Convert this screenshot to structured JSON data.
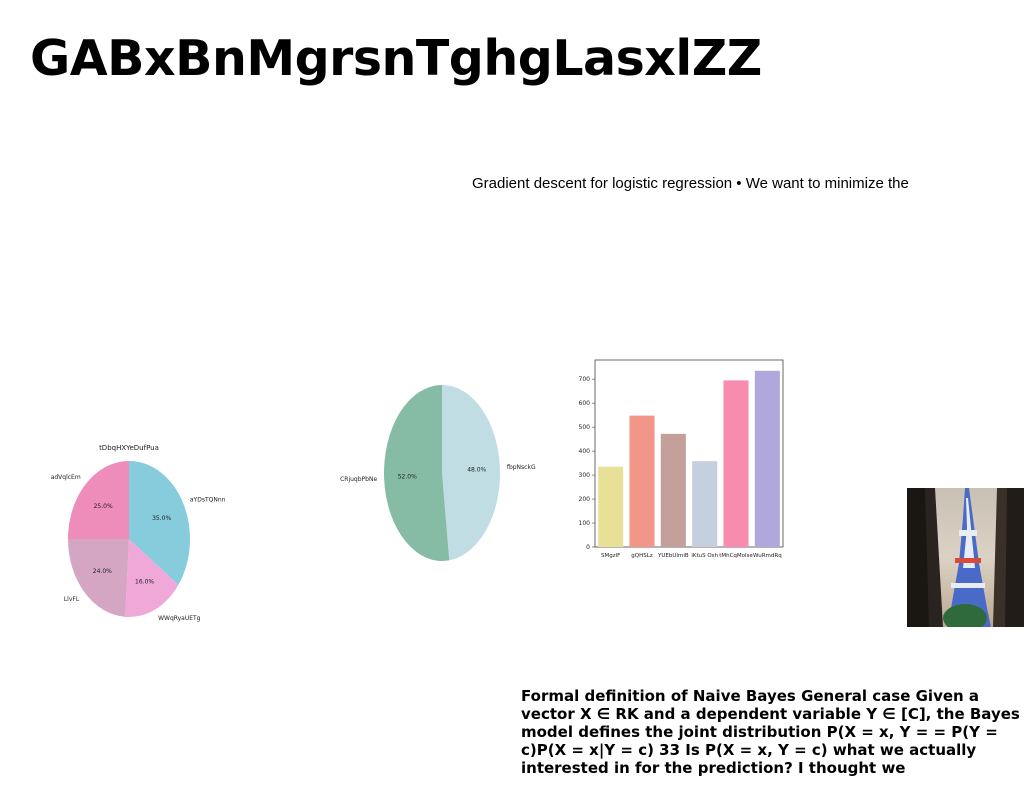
{
  "slide": {
    "title": "GABxBnMgrsnTghgLasxlZZ",
    "subtitle": "Gradient descent for logistic regression • We want to minimize the",
    "body": "Formal definition of Naive Bayes General case Given a vector X ∈ RK and a dependent variable Y ∈ [C], the Bayes model defines the joint distribution P(X = x, Y = = P(Y = c)P(X = x|Y = c) 33 Is P(X = x, Y = c) what we actually interested in for the prediction? I thought we"
  },
  "chart_data": [
    {
      "type": "pie",
      "title": "tDbqHXYeDufPua",
      "labels": [
        "aYDsTQNnn",
        "WWqRyaUETg",
        "LlvFL",
        "adVqlcEm"
      ],
      "values": [
        35.0,
        16.0,
        24.0,
        25.0
      ],
      "pct_labels": [
        "35.0%",
        "16.0%",
        "24.0%",
        "25.0%"
      ],
      "colors": [
        "#86ccdc",
        "#f0a8d8",
        "#d4a6c4",
        "#ee8cba"
      ]
    },
    {
      "type": "pie",
      "title": "",
      "labels": [
        "fbpNsckG",
        "CRjuqbPbNe"
      ],
      "values": [
        48.0,
        52.0
      ],
      "pct_labels": [
        "48.0%",
        "52.0%"
      ],
      "colors": [
        "#c0dde4",
        "#86bca6"
      ]
    },
    {
      "type": "bar",
      "categories": [
        "SMgzlF",
        "gQHSLz",
        "YUEbUImiB",
        "iKtuS Osh",
        "tMhCqMolse",
        "WuRmdRq"
      ],
      "values": [
        335,
        548,
        472,
        358,
        695,
        735
      ],
      "colors": [
        "#e8e096",
        "#f2968a",
        "#c4a09a",
        "#c4d0e0",
        "#f88cae",
        "#b0a8dc"
      ],
      "ylim": [
        0,
        780
      ],
      "yticks": [
        0,
        100,
        200,
        300,
        400,
        500,
        600,
        700
      ]
    }
  ],
  "image": {
    "subject": "tokyo-tower-photo"
  }
}
